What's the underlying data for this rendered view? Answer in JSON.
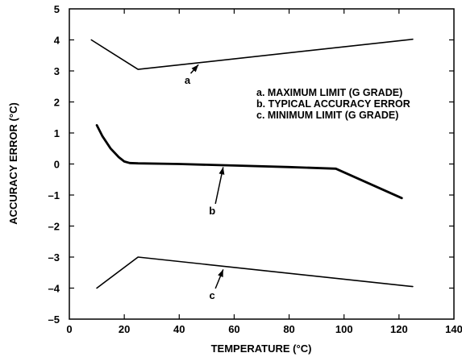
{
  "chart_data": {
    "type": "line",
    "xlabel": "TEMPERATURE (°C)",
    "ylabel": "ACCURACY ERROR (°C)",
    "xlim": [
      0,
      140
    ],
    "ylim": [
      -5,
      5
    ],
    "xticks": [
      0,
      20,
      40,
      60,
      80,
      100,
      120,
      140
    ],
    "yticks": [
      5,
      4,
      3,
      2,
      1,
      0,
      -1,
      -2,
      -3,
      -4,
      -5
    ],
    "xtick_labels": [
      "0",
      "20",
      "40",
      "60",
      "80",
      "100",
      "120",
      "140"
    ],
    "ytick_labels": [
      "5",
      "4",
      "3",
      "2",
      "1",
      "0",
      "–1",
      "–2",
      "–3",
      "–4",
      "–5"
    ],
    "grid": false,
    "legend": [
      "a.  MAXIMUM LIMIT (G GRADE)",
      "b.  TYPICAL ACCURACY ERROR",
      "c.  MINIMUM LIMIT (G GRADE)"
    ],
    "series": [
      {
        "label": "a",
        "x": [
          8,
          25,
          125
        ],
        "y": [
          4.0,
          3.05,
          4.02
        ]
      },
      {
        "label": "b",
        "x": [
          10,
          12,
          15,
          18,
          20,
          22,
          25,
          40,
          60,
          80,
          97,
          121
        ],
        "y": [
          1.25,
          0.9,
          0.5,
          0.22,
          0.08,
          0.03,
          0.02,
          0.0,
          -0.05,
          -0.1,
          -0.15,
          -1.1
        ]
      },
      {
        "label": "c",
        "x": [
          10,
          25,
          125
        ],
        "y": [
          -4.0,
          -3.0,
          -3.95
        ]
      }
    ],
    "annotations": [
      {
        "text": "a",
        "label_x": 43,
        "label_y": 2.58,
        "arrow_x": 47,
        "arrow_y": 3.2
      },
      {
        "text": "b",
        "label_x": 52,
        "label_y": -1.62,
        "arrow_x": 56,
        "arrow_y": -0.1
      },
      {
        "text": "c",
        "label_x": 52,
        "label_y": -4.35,
        "arrow_x": 56,
        "arrow_y": -3.4
      }
    ]
  }
}
